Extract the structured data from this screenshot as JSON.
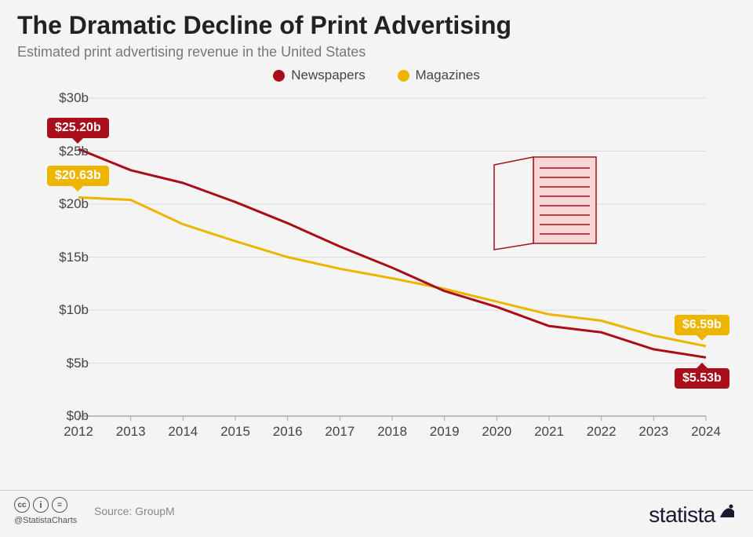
{
  "title": "The Dramatic Decline of Print Advertising",
  "subtitle": "Estimated print advertising revenue in the United States",
  "legend": {
    "series1": {
      "label": "Newspapers",
      "color": "#a80f1a"
    },
    "series2": {
      "label": "Magazines",
      "color": "#eeb500"
    }
  },
  "chart": {
    "type": "line",
    "background_color": "#f4f4f4",
    "grid_color": "#dddddd",
    "axis_color": "#aaaaaa",
    "text_color": "#444444",
    "line_width": 3,
    "font_size": 17,
    "years": [
      2012,
      2013,
      2014,
      2015,
      2016,
      2017,
      2018,
      2019,
      2020,
      2021,
      2022,
      2023,
      2024
    ],
    "ylim": [
      0,
      30
    ],
    "ytick_step": 5,
    "y_prefix": "$",
    "y_suffix": "b",
    "series": {
      "newspapers": {
        "color": "#a80f1a",
        "values": [
          25.2,
          23.2,
          22.0,
          20.2,
          18.2,
          16.0,
          14.0,
          11.8,
          10.3,
          8.5,
          7.9,
          6.3,
          5.53
        ]
      },
      "magazines": {
        "color": "#eeb500",
        "values": [
          20.63,
          20.4,
          18.1,
          16.5,
          15.0,
          13.9,
          13.0,
          12.0,
          10.8,
          9.6,
          9.0,
          7.6,
          6.59
        ]
      }
    },
    "callouts": [
      {
        "series_text": "$25.20b",
        "bg": "#a80f1a",
        "x_index": 0,
        "above": true
      },
      {
        "series_text": "$20.63b",
        "bg": "#eeb500",
        "x_index": 0,
        "above": true
      },
      {
        "series_text": "$6.59b",
        "bg": "#eeb500",
        "x_index": 12,
        "above": true
      },
      {
        "series_text": "$5.53b",
        "bg": "#a80f1a",
        "x_index": 12,
        "above": false
      }
    ],
    "illustration": {
      "stroke": "#a80f1a",
      "fill": "#f7d6d6"
    }
  },
  "footer": {
    "handle": "@StatistaCharts",
    "source_label": "Source:",
    "source_value": "GroupM",
    "brand_pre": "statista",
    "brand_icon": "✔"
  }
}
